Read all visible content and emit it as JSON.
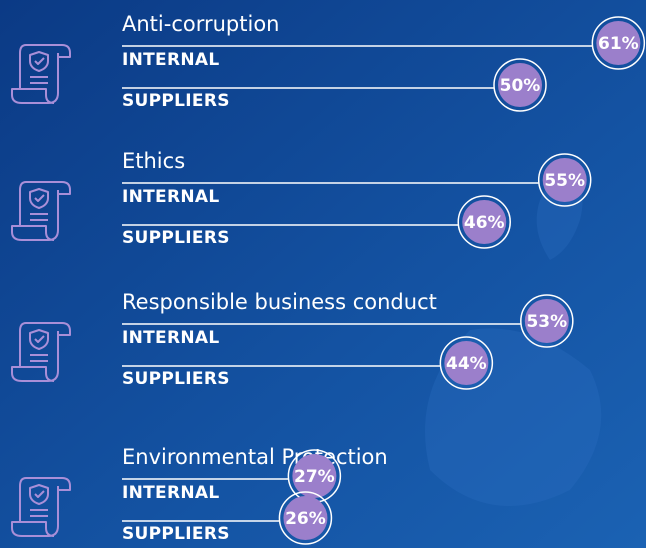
{
  "chart_data": {
    "type": "bar",
    "categories": [
      "Anti-corruption",
      "Ethics",
      "Responsible business conduct",
      "Environmental Protection"
    ],
    "series": [
      {
        "name": "INTERNAL",
        "color": "#9b7fcb",
        "values": [
          61,
          55,
          53,
          27
        ],
        "value_labels": [
          "61%",
          "55%",
          "53%",
          "27%"
        ]
      },
      {
        "name": "SUPPLIERS",
        "color": "#9b7fcb",
        "values": [
          50,
          46,
          44,
          26
        ],
        "value_labels": [
          "50%",
          "46%",
          "44%",
          "26%"
        ]
      }
    ]
  }
}
